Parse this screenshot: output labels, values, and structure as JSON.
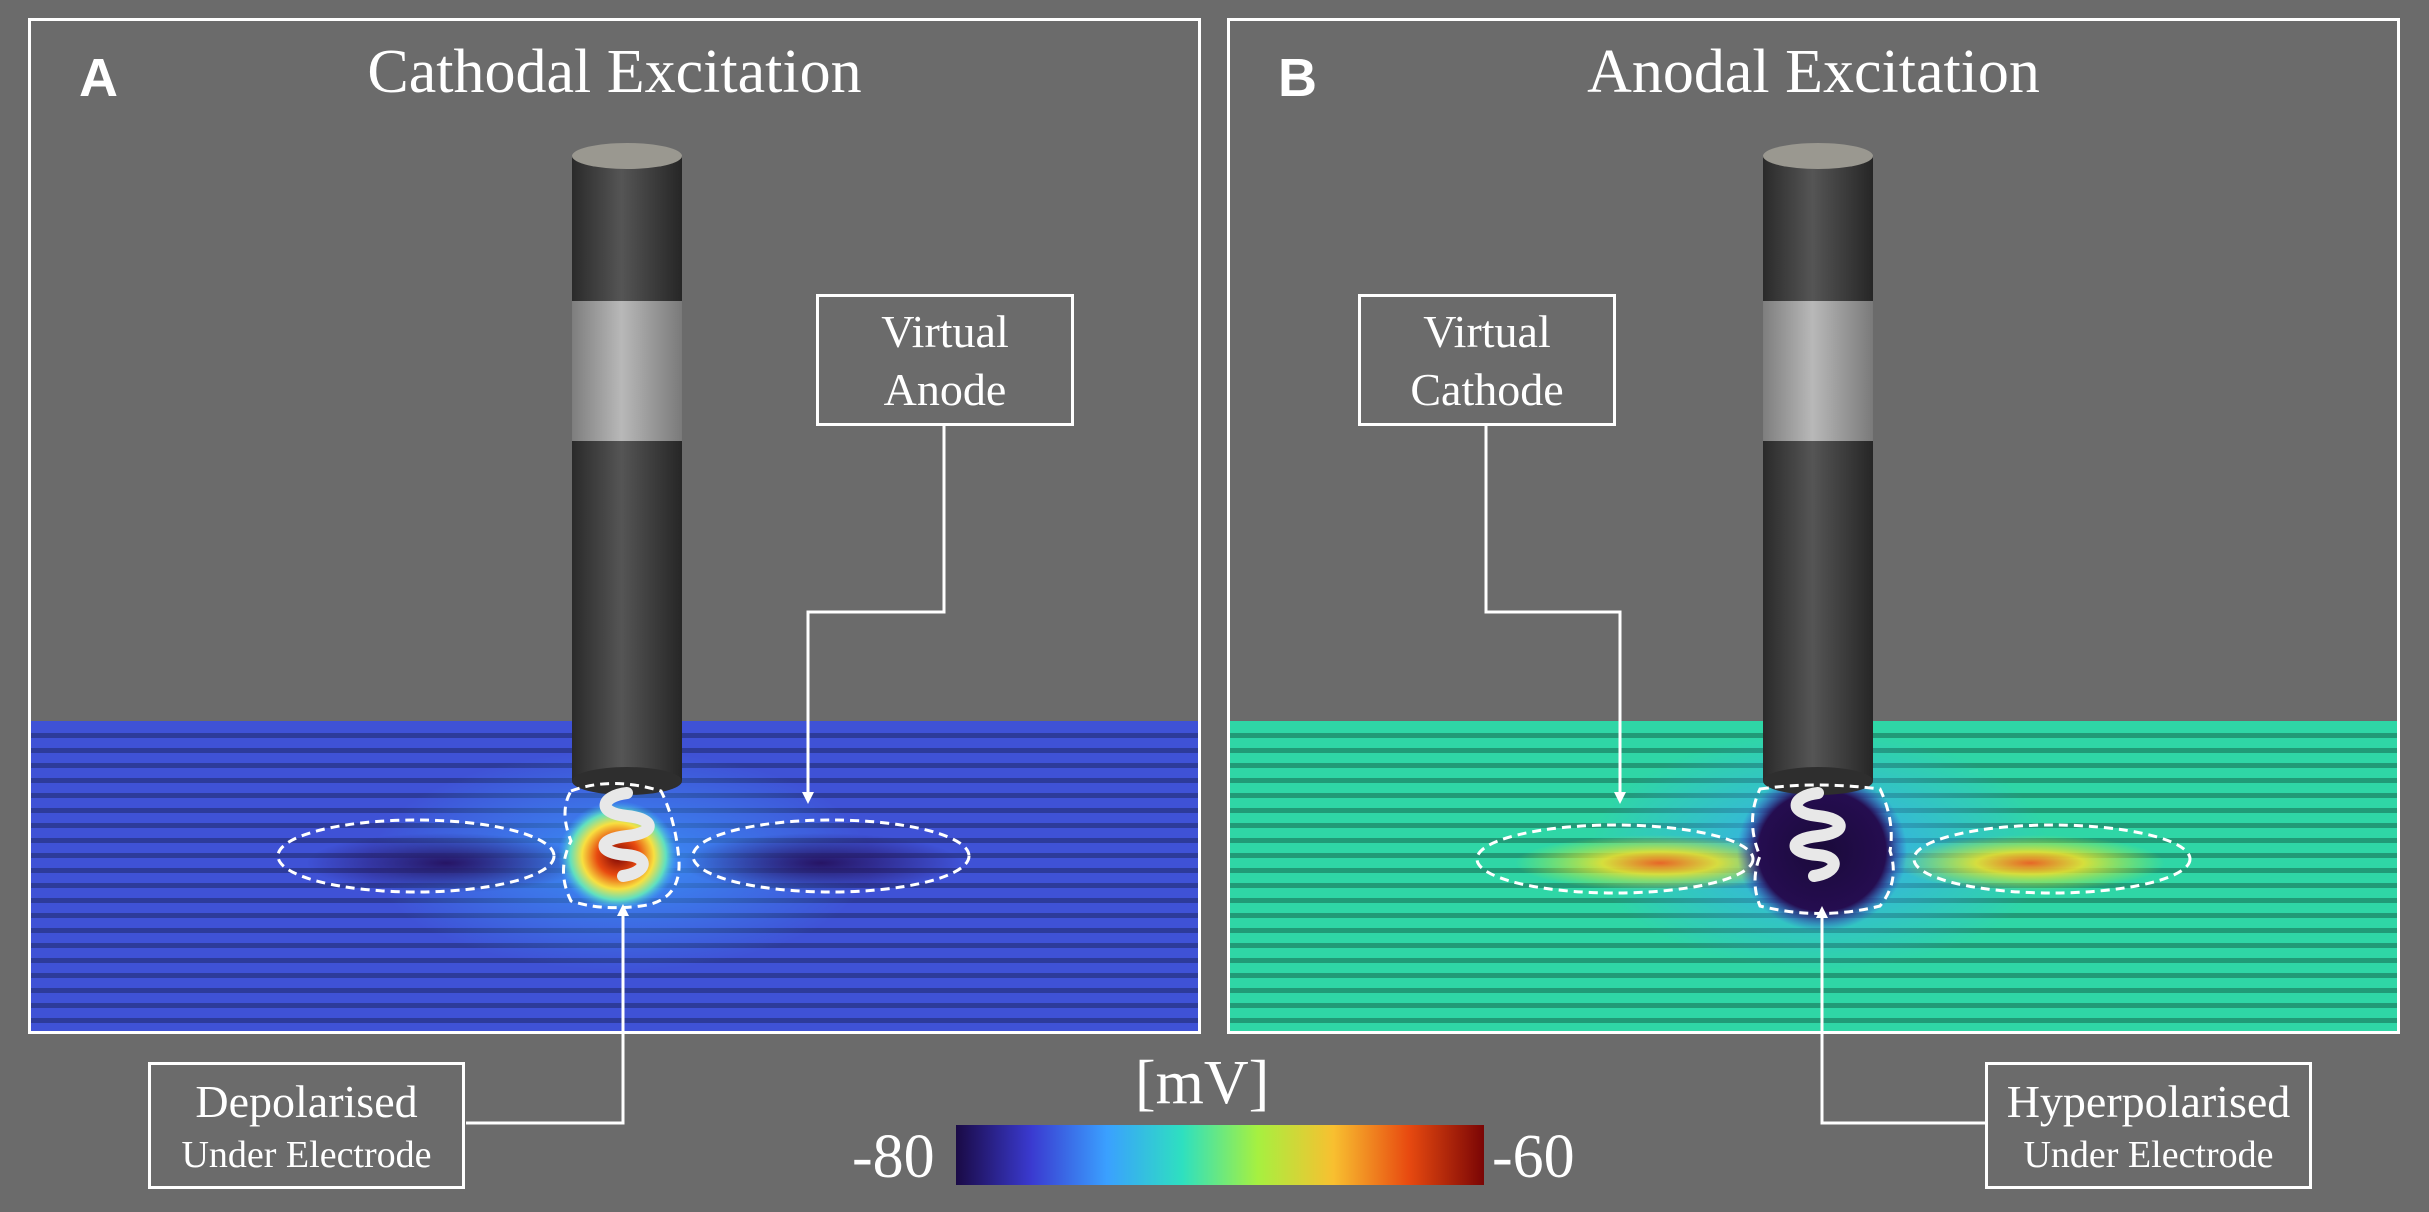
{
  "panels": [
    {
      "letter": "A",
      "title": "Cathodal Excitation",
      "callout_top": {
        "line1": "Virtual",
        "line2": "Anode"
      },
      "callout_bottom": {
        "line1": "Depolarised",
        "line2": "Under Electrode"
      },
      "tissue_color": "#3f52d6",
      "center_color": "#8b0a0a",
      "side_color": "#25105e"
    },
    {
      "letter": "B",
      "title": "Anodal Excitation",
      "callout_top": {
        "line1": "Virtual",
        "line2": "Cathode"
      },
      "callout_bottom": {
        "line1": "Hyperpolarised",
        "line2": "Under Electrode"
      },
      "tissue_color": "#2fd6a6",
      "center_color": "#220a44",
      "side_color": "#e8c626"
    }
  ],
  "colorbar": {
    "unit": "[mV]",
    "min_label": "-80",
    "max_label": "-60",
    "stops": [
      "#1a0a45",
      "#3a3ad0",
      "#3aa0ff",
      "#2ee0c0",
      "#a6f040",
      "#f8c030",
      "#e84a10",
      "#7a0505"
    ]
  },
  "colors": {
    "background": "#6b6b6b",
    "border": "#ffffff",
    "electrode_dark": "#3a3a3a",
    "electrode_band": "#9c9c9c",
    "coil": "#e8e8e8"
  }
}
